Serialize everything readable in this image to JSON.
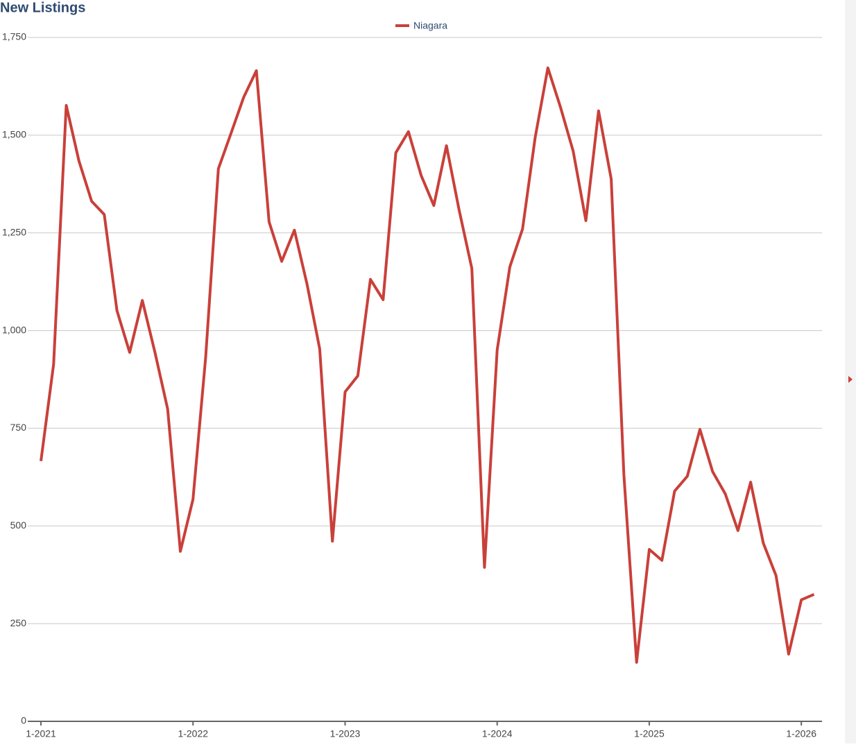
{
  "chart_data": {
    "type": "line",
    "title": "New Listings",
    "categories": [
      "1-2021",
      null,
      null,
      null,
      null,
      null,
      null,
      null,
      null,
      null,
      null,
      null,
      "1-2022",
      null,
      null,
      null,
      null,
      null,
      null,
      null,
      null,
      null,
      null,
      null,
      "1-2023",
      null,
      null,
      null,
      null,
      null,
      null,
      null,
      null,
      null,
      null,
      null,
      "1-2024",
      null,
      null,
      null,
      null,
      null,
      null,
      null,
      null,
      null,
      null,
      null,
      "1-2025",
      null,
      null,
      null,
      null,
      null,
      null,
      null,
      null,
      null,
      null,
      null,
      "1-2026",
      null
    ],
    "series": [
      {
        "name": "Niagara",
        "color": "#c9403a",
        "values": [
          666,
          914,
          1576,
          1434,
          1331,
          1297,
          1051,
          944,
          1077,
          944,
          799,
          435,
          568,
          932,
          1414,
          1505,
          1597,
          1665,
          1278,
          1177,
          1257,
          1118,
          953,
          461,
          843,
          884,
          1131,
          1079,
          1455,
          1509,
          1397,
          1320,
          1473,
          1308,
          1159,
          394,
          950,
          1163,
          1260,
          1494,
          1672,
          1571,
          1459,
          1281,
          1562,
          1388,
          630,
          151,
          440,
          412,
          589,
          627,
          747,
          639,
          582,
          488,
          612,
          456,
          373,
          172,
          311,
          325
        ]
      }
    ],
    "ylim": [
      0,
      1750
    ],
    "yticks": [
      0,
      250,
      500,
      750,
      {
        "value": 1000,
        "label": "1,000"
      },
      {
        "value": 1250,
        "label": "1,250"
      },
      {
        "value": 1500,
        "label": "1,500"
      },
      {
        "value": 1750,
        "label": "1,750"
      }
    ],
    "grid": true,
    "legend": "top"
  }
}
